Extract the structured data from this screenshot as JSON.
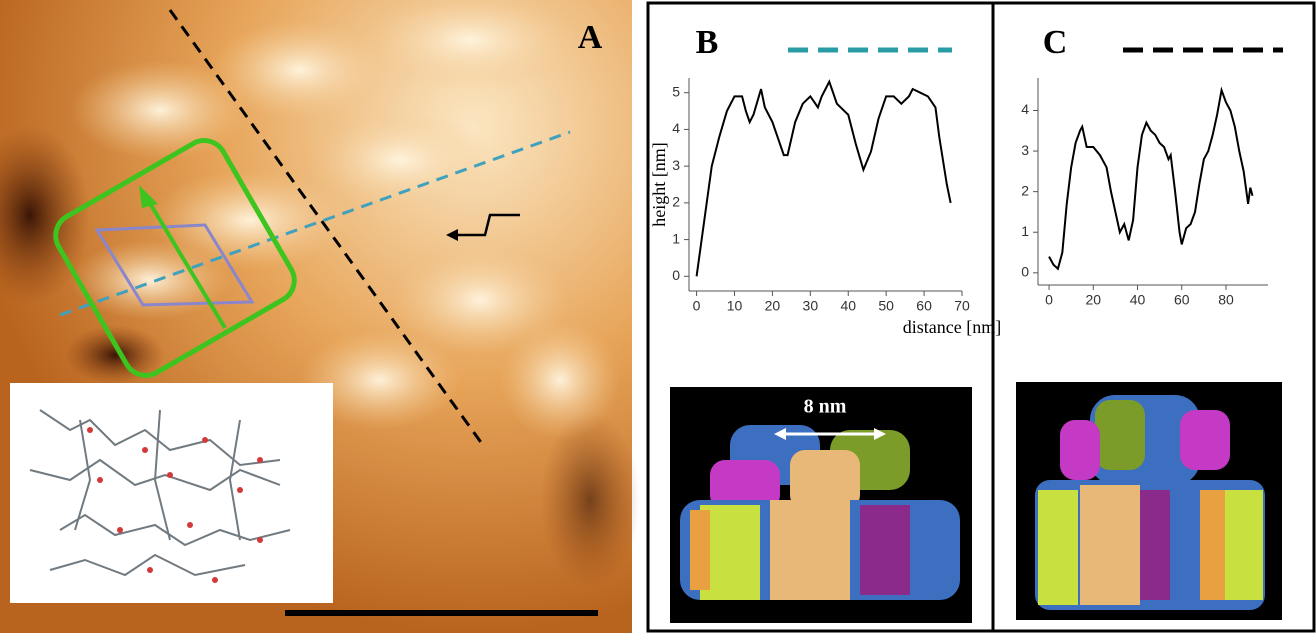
{
  "panel_labels": [
    "A",
    "B",
    "C"
  ],
  "annotation": "8 nm",
  "chart_data": [
    {
      "type": "line",
      "xlabel": "distance [nm]",
      "ylabel": "height [nm]",
      "xlim": [
        -2,
        70
      ],
      "ylim": [
        -0.4,
        5.4
      ],
      "xticks": [
        0,
        10,
        20,
        30,
        40,
        50,
        60,
        70
      ],
      "yticks": [
        0,
        1,
        2,
        3,
        4,
        5
      ],
      "legend_color": "#2a9ca6",
      "series": [
        {
          "color": "#000000",
          "x": [
            0,
            2,
            4,
            6,
            8,
            10,
            12,
            13,
            14,
            15,
            17,
            18,
            20,
            22,
            23,
            24,
            26,
            28,
            30,
            32,
            33,
            35,
            37,
            40,
            42,
            44,
            46,
            48,
            50,
            52,
            54,
            56,
            57,
            59,
            61,
            63,
            64,
            66,
            67
          ],
          "values": [
            0,
            1.5,
            3,
            3.8,
            4.5,
            4.9,
            4.9,
            4.5,
            4.2,
            4.4,
            5.1,
            4.6,
            4.2,
            3.6,
            3.3,
            3.3,
            4.2,
            4.7,
            4.9,
            4.6,
            4.9,
            5.3,
            4.7,
            4.4,
            3.6,
            2.9,
            3.4,
            4.3,
            4.9,
            4.9,
            4.7,
            4.9,
            5.1,
            5.0,
            4.9,
            4.6,
            3.8,
            2.5,
            2.0
          ]
        }
      ]
    },
    {
      "type": "line",
      "xlim": [
        -5,
        99
      ],
      "ylim": [
        -0.3,
        4.8
      ],
      "xticks": [
        0,
        20,
        40,
        60,
        80
      ],
      "yticks": [
        0,
        1,
        2,
        3,
        4
      ],
      "legend_color": "#000000",
      "series": [
        {
          "color": "#000000",
          "x": [
            0,
            2,
            4,
            6,
            8,
            10,
            12,
            14,
            15,
            17,
            20,
            23,
            26,
            28,
            30,
            32,
            34,
            36,
            38,
            40,
            42,
            44,
            46,
            48,
            50,
            52,
            54,
            55,
            57,
            59,
            60,
            62,
            64,
            66,
            68,
            70,
            72,
            74,
            76,
            78,
            80,
            82,
            84,
            86,
            88,
            90,
            91,
            92
          ],
          "values": [
            0.4,
            0.2,
            0.1,
            0.5,
            1.7,
            2.6,
            3.2,
            3.5,
            3.6,
            3.1,
            3.1,
            2.9,
            2.6,
            2.0,
            1.5,
            1.0,
            1.2,
            0.8,
            1.3,
            2.6,
            3.4,
            3.7,
            3.5,
            3.4,
            3.2,
            3.1,
            2.8,
            2.9,
            2.0,
            1.0,
            0.7,
            1.1,
            1.2,
            1.5,
            2.2,
            2.8,
            3.0,
            3.4,
            3.9,
            4.5,
            4.2,
            4.0,
            3.6,
            3.0,
            2.5,
            1.7,
            2.1,
            1.9
          ]
        }
      ]
    }
  ]
}
